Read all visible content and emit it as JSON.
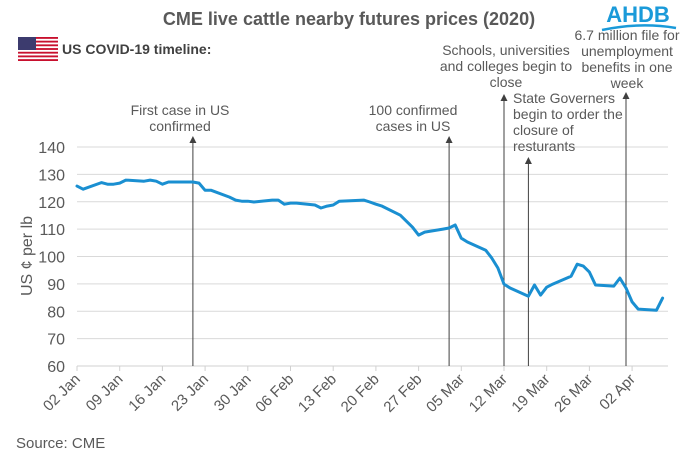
{
  "logo": {
    "text": "AHDB",
    "color": "#1a9ad9"
  },
  "subtitle": {
    "flag": "us-flag-icon",
    "text": "US COVID-19 timeline:"
  },
  "source": "Source: CME",
  "colors": {
    "line": "#1a8fd1",
    "grid": "#d9d9d9",
    "text": "#595959",
    "annot_line": "#404040"
  },
  "chart_data": {
    "type": "line",
    "title": "CME live cattle nearby futures prices (2020)",
    "xlabel": "",
    "ylabel": "US ¢ per lb",
    "ylim": [
      60,
      140
    ],
    "yticks": [
      60,
      70,
      80,
      90,
      100,
      110,
      120,
      130,
      140
    ],
    "grid": true,
    "x_unit": "days since 02 Jan 2020",
    "xlim": [
      0,
      97
    ],
    "xticks": [
      {
        "day": 0,
        "label": "02 Jan"
      },
      {
        "day": 7,
        "label": "09 Jan"
      },
      {
        "day": 14,
        "label": "16 Jan"
      },
      {
        "day": 21,
        "label": "23 Jan"
      },
      {
        "day": 28,
        "label": "30 Jan"
      },
      {
        "day": 35,
        "label": "06 Feb"
      },
      {
        "day": 42,
        "label": "13 Feb"
      },
      {
        "day": 49,
        "label": "20 Feb"
      },
      {
        "day": 56,
        "label": "27 Feb"
      },
      {
        "day": 63,
        "label": "05 Mar"
      },
      {
        "day": 70,
        "label": "12 Mar"
      },
      {
        "day": 77,
        "label": "19 Mar"
      },
      {
        "day": 84,
        "label": "26 Mar"
      },
      {
        "day": 91,
        "label": "02 Apr"
      }
    ],
    "series": [
      {
        "name": "CME live cattle nearby futures",
        "x": [
          0,
          1,
          4,
          5,
          6,
          7,
          8,
          11,
          12,
          13,
          14,
          15,
          19,
          20,
          21,
          22,
          25,
          26,
          27,
          28,
          29,
          32,
          33,
          34,
          35,
          36,
          39,
          40,
          41,
          42,
          43,
          47,
          48,
          49,
          50,
          53,
          54,
          55,
          56,
          57,
          60,
          61,
          62,
          63,
          64,
          67,
          68,
          69,
          70,
          71,
          74,
          75,
          76,
          77,
          78,
          81,
          82,
          83,
          84,
          85,
          88,
          89,
          90,
          91,
          92,
          95,
          96
        ],
        "values": [
          125.7,
          124.6,
          127.0,
          126.4,
          126.4,
          126.8,
          127.9,
          127.5,
          127.9,
          127.5,
          126.4,
          127.2,
          127.2,
          126.8,
          124.2,
          124.2,
          121.7,
          120.6,
          120.2,
          120.2,
          119.9,
          120.6,
          120.6,
          119.1,
          119.5,
          119.5,
          118.8,
          117.7,
          118.4,
          118.8,
          120.2,
          120.6,
          119.9,
          119.1,
          118.4,
          115.1,
          112.9,
          110.7,
          107.8,
          108.9,
          110.0,
          110.4,
          111.5,
          106.7,
          105.3,
          102.3,
          99.4,
          95.8,
          89.9,
          88.5,
          85.5,
          89.6,
          85.9,
          88.8,
          89.9,
          92.8,
          97.2,
          96.5,
          94.3,
          89.6,
          89.2,
          92.1,
          88.5,
          83.4,
          80.8,
          80.4,
          84.8
        ]
      }
    ],
    "annotations": [
      {
        "day": 19,
        "lines": [
          "First case in US",
          "confirmed"
        ]
      },
      {
        "day": 61,
        "lines": [
          "100 confirmed",
          "cases in US"
        ]
      },
      {
        "day": 70,
        "lines": [
          "Schools, universities",
          "and colleges begin to",
          "close"
        ]
      },
      {
        "day": 74,
        "lines": [
          "State Governers",
          "begin to order the",
          "closure of",
          "resturants"
        ]
      },
      {
        "day": 90,
        "lines": [
          "6.7 million file for",
          "unemployment",
          "benefits in one",
          "week"
        ]
      }
    ]
  }
}
